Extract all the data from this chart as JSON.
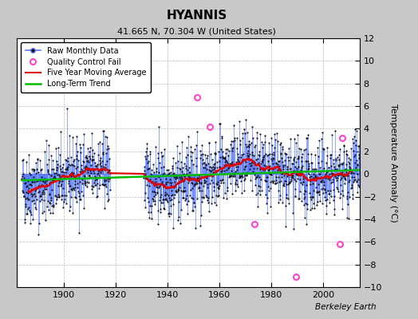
{
  "title": "HYANNIS",
  "subtitle": "41.665 N, 70.304 W (United States)",
  "ylabel": "Temperature Anomaly (°C)",
  "attribution": "Berkeley Earth",
  "xlim": [
    1882,
    2014
  ],
  "ylim": [
    -10,
    12
  ],
  "yticks": [
    -10,
    -8,
    -6,
    -4,
    -2,
    0,
    2,
    4,
    6,
    8,
    10,
    12
  ],
  "xticks": [
    1900,
    1920,
    1940,
    1960,
    1980,
    2000
  ],
  "fig_bg_color": "#c8c8c8",
  "plot_bg_color": "#ffffff",
  "raw_line_color": "#5577ff",
  "raw_dot_color": "#111111",
  "ma_color": "#dd0000",
  "trend_color": "#00bb00",
  "qc_fail_color": "#ff44cc",
  "seed": 42,
  "start_year": 1884,
  "end_year": 2013,
  "gap_start": 1917,
  "gap_end": 1931,
  "trend_slope": 0.007,
  "trend_intercept": -0.1,
  "noise_std": 1.6,
  "multi_year_amp": 0.7,
  "multi_year_period": 55,
  "qc_years": [
    1951.5,
    1956.5,
    1973.5,
    1989.5,
    2006.5,
    2007.5
  ],
  "qc_values": [
    6.8,
    4.2,
    -4.4,
    -9.1,
    -6.2,
    3.2
  ]
}
